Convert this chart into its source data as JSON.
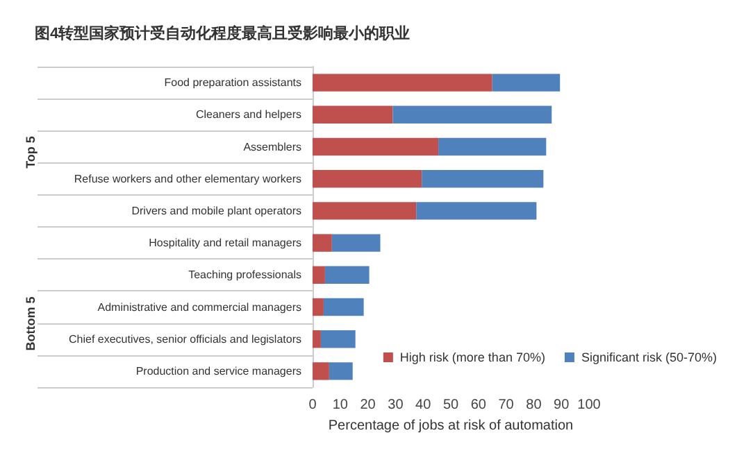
{
  "chart_data": {
    "type": "bar",
    "orientation": "horizontal",
    "stacked": true,
    "title": "图4转型国家预计受自动化程度最高且受影响最小的职业",
    "xlabel": "Percentage of jobs at risk of automation",
    "categories": [
      "Food preparation assistants",
      "Cleaners and helpers",
      "Assemblers",
      "Refuse workers and other elementary workers",
      "Drivers and mobile plant operators",
      "Hospitality and retail managers",
      "Teaching professionals",
      "Administrative and commercial managers",
      "Chief executives, senior officials and legislators",
      "Production and service managers"
    ],
    "series": [
      {
        "name": "High risk (more than 70%)",
        "color": "#c0504d",
        "values": [
          65,
          29,
          45.5,
          39.5,
          37.5,
          7,
          4.5,
          4,
          3,
          6
        ]
      },
      {
        "name": "Significant risk (50-70%)",
        "color": "#4f81bd",
        "values": [
          24.5,
          57.5,
          39,
          44,
          43.5,
          17.5,
          16,
          14.5,
          12.5,
          8.5
        ]
      }
    ],
    "xlim": [
      0,
      100
    ],
    "xticks": [
      0,
      10,
      20,
      30,
      40,
      50,
      60,
      70,
      80,
      90,
      100
    ],
    "grid": false,
    "legend": "bottom right",
    "annotations": [
      "Top 5",
      "Bottom 5"
    ]
  }
}
